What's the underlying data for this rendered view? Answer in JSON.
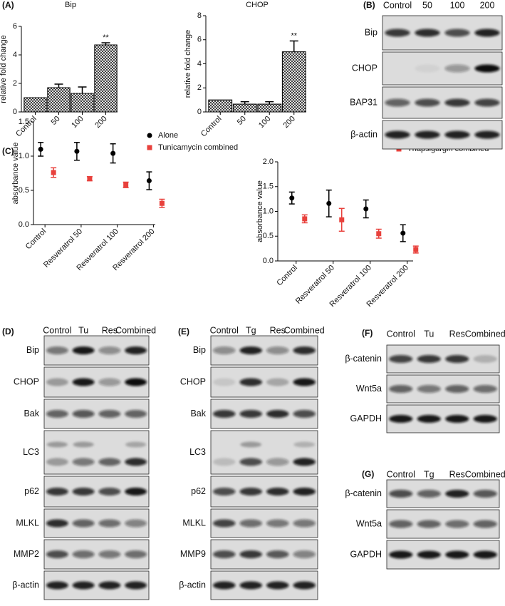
{
  "chart_data": [
    {
      "type": "bar",
      "panel": "(A)",
      "title": "Bip",
      "y_label": "relative fold change",
      "categories": [
        "Control",
        "50",
        "100",
        "200"
      ],
      "values": [
        1.0,
        1.7,
        1.3,
        4.7
      ],
      "errors": [
        null,
        0.25,
        0.45,
        0.15
      ],
      "color": "#000000",
      "ylim": [
        0,
        6
      ],
      "yticks": [
        0,
        2,
        4,
        6
      ],
      "annotations": [
        {
          "text": "**",
          "category": "200"
        }
      ]
    },
    {
      "type": "bar",
      "title": "CHOP",
      "y_label": "relative fold change",
      "categories": [
        "Control",
        "50",
        "100",
        "200"
      ],
      "values": [
        1.0,
        0.65,
        0.65,
        5.0
      ],
      "errors": [
        null,
        0.2,
        0.2,
        0.9
      ],
      "color": "#000000",
      "ylim": [
        0,
        8
      ],
      "yticks": [
        0,
        2,
        4,
        6,
        8
      ],
      "annotations": [
        {
          "text": "**",
          "category": "200"
        }
      ]
    },
    {
      "type": "errorbar",
      "panel": "(C)",
      "y_label": "absorbance value",
      "categories": [
        "Control",
        "Resveratrol 50",
        "Resveratrol 100",
        "Resveratrol 200"
      ],
      "series": [
        {
          "name": "Alone",
          "color": "#000000",
          "marker": "circle",
          "values": [
            1.1,
            1.07,
            1.04,
            0.64
          ],
          "errors": [
            0.1,
            0.13,
            0.14,
            0.13
          ]
        },
        {
          "name": "Tunicamycin combined",
          "color": "#e8413c",
          "marker": "square",
          "values": [
            0.76,
            0.67,
            0.58,
            0.31
          ],
          "errors": [
            0.07,
            0.03,
            0.04,
            0.06
          ]
        }
      ],
      "ylim": [
        0,
        1.5
      ],
      "yticks": [
        {
          "value": 0,
          "label": "0.0"
        },
        {
          "value": 0.5,
          "label": "0.5"
        },
        {
          "value": 1,
          "label": "1.0"
        },
        {
          "value": 1.5,
          "label": "1.5"
        }
      ]
    },
    {
      "type": "errorbar",
      "y_label": "absorbance value",
      "categories": [
        "Control",
        "Resveratrol 50",
        "Resveratrol 100",
        "Resveratrol 200"
      ],
      "series": [
        {
          "name": "Alone",
          "color": "#000000",
          "marker": "circle",
          "values": [
            1.27,
            1.16,
            1.05,
            0.56
          ],
          "errors": [
            0.12,
            0.27,
            0.18,
            0.17
          ]
        },
        {
          "name": "Thapsigargin combined",
          "color": "#e8413c",
          "marker": "square",
          "values": [
            0.85,
            0.83,
            0.55,
            0.23
          ],
          "errors": [
            0.08,
            0.23,
            0.09,
            0.07
          ]
        }
      ],
      "ylim": [
        0,
        2
      ],
      "yticks": [
        {
          "value": 0,
          "label": "0.0"
        },
        {
          "value": 0.5,
          "label": "0.5"
        },
        {
          "value": 1,
          "label": "1.0"
        },
        {
          "value": 1.5,
          "label": "1.5"
        },
        {
          "value": 2,
          "label": "2.0"
        }
      ]
    }
  ],
  "blots": [
    {
      "panel": "(B)",
      "lanes": [
        "Control",
        "50",
        "100",
        "200"
      ],
      "rows": [
        {
          "label": "Bip",
          "intensity": [
            0.8,
            0.85,
            0.7,
            0.9
          ]
        },
        {
          "label": "CHOP",
          "intensity": [
            0,
            0.05,
            0.35,
            1
          ]
        },
        {
          "label": "BAP31",
          "intensity": [
            0.6,
            0.7,
            0.8,
            0.75
          ]
        },
        {
          "label": "β-actin",
          "intensity": [
            0.9,
            0.9,
            0.9,
            0.9
          ]
        }
      ]
    },
    {
      "panel": "(D)",
      "lanes": [
        "Control",
        "Tu",
        "Res",
        "Combined"
      ],
      "rows": [
        {
          "label": "Bip",
          "intensity": [
            0.5,
            0.95,
            0.4,
            0.9
          ]
        },
        {
          "label": "CHOP",
          "intensity": [
            0.3,
            0.95,
            0.35,
            1
          ]
        },
        {
          "label": "Bak",
          "intensity": [
            0.6,
            0.65,
            0.6,
            0.6
          ]
        },
        {
          "label": "LC3",
          "intensity": [
            0.3,
            0.5,
            0.6,
            0.85
          ],
          "intensity_upper": [
            0.3,
            0.3,
            0,
            0.25
          ]
        },
        {
          "label": "p62",
          "intensity": [
            0.8,
            0.8,
            0.7,
            0.95
          ]
        },
        {
          "label": "MLKL",
          "intensity": [
            0.85,
            0.6,
            0.55,
            0.45
          ]
        },
        {
          "label": "MMP2",
          "intensity": [
            0.7,
            0.55,
            0.5,
            0.55
          ]
        },
        {
          "label": "β-actin",
          "intensity": [
            0.9,
            0.9,
            0.9,
            0.9
          ]
        }
      ]
    },
    {
      "panel": "(E)",
      "lanes": [
        "Control",
        "Tg",
        "Res",
        "Combined"
      ],
      "rows": [
        {
          "label": "Bip",
          "intensity": [
            0.4,
            0.9,
            0.4,
            0.85
          ]
        },
        {
          "label": "CHOP",
          "intensity": [
            0.1,
            0.85,
            0.25,
            0.95
          ]
        },
        {
          "label": "Bak",
          "intensity": [
            0.8,
            0.8,
            0.85,
            0.7
          ]
        },
        {
          "label": "LC3",
          "intensity": [
            0.15,
            0.7,
            0.35,
            0.9
          ],
          "intensity_upper": [
            0,
            0.3,
            0,
            0.2
          ]
        },
        {
          "label": "p62",
          "intensity": [
            0.7,
            0.8,
            0.85,
            0.9
          ]
        },
        {
          "label": "MLKL",
          "intensity": [
            0.75,
            0.55,
            0.5,
            0.5
          ]
        },
        {
          "label": "MMP9",
          "intensity": [
            0.7,
            0.8,
            0.65,
            0.45
          ]
        },
        {
          "label": "β-actin",
          "intensity": [
            0.9,
            0.9,
            0.9,
            0.9
          ]
        }
      ]
    },
    {
      "panel": "(F)",
      "lanes": [
        "Control",
        "Tu",
        "Res",
        "Combined"
      ],
      "rows": [
        {
          "label": "β-catenin",
          "intensity": [
            0.75,
            0.8,
            0.8,
            0.2
          ]
        },
        {
          "label": "Wnt5a",
          "intensity": [
            0.6,
            0.5,
            0.6,
            0.55
          ]
        },
        {
          "label": "GAPDH",
          "intensity": [
            0.95,
            0.95,
            0.95,
            0.95
          ]
        }
      ]
    },
    {
      "panel": "(G)",
      "lanes": [
        "Control",
        "Tg",
        "Res",
        "Combined"
      ],
      "rows": [
        {
          "label": "β-catenin",
          "intensity": [
            0.7,
            0.6,
            0.9,
            0.65
          ]
        },
        {
          "label": "Wnt5a",
          "intensity": [
            0.6,
            0.6,
            0.55,
            0.6
          ]
        },
        {
          "label": "GAPDH",
          "intensity": [
            0.95,
            0.95,
            0.95,
            0.95
          ]
        }
      ]
    }
  ]
}
